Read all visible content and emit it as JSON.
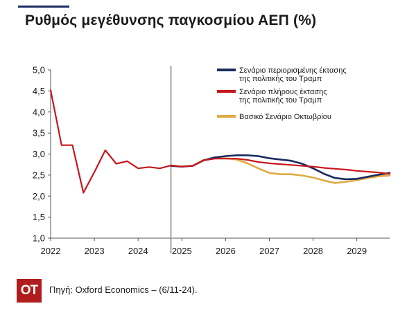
{
  "title": "Ρυθμός μεγέθυνσης παγκοσμίου ΑΕΠ (%)",
  "footer": {
    "logo_text": "ΟΤ",
    "source": "Πηγή: Oxford Economics – (6/11-24)."
  },
  "colors": {
    "navy": "#1b2a5e",
    "red": "#c8161d",
    "gold": "#e0aa44",
    "axis": "#555555",
    "divider": "#8a8a8a"
  },
  "chart_data": {
    "type": "line",
    "title": "Ρυθμός μεγέθυνσης παγκοσμίου ΑΕΠ (%)",
    "xlabel": "",
    "ylabel": "",
    "ylim": [
      1.0,
      5.0
    ],
    "xlim": [
      2022.0,
      2029.75
    ],
    "y_ticks": [
      "1,0",
      "1,5",
      "2,0",
      "2,5",
      "3,0",
      "3,5",
      "4,0",
      "4,5",
      "5,0"
    ],
    "x_ticks": [
      "2022",
      "2023",
      "2024",
      "2025",
      "2026",
      "2027",
      "2028",
      "2029"
    ],
    "grid": false,
    "legend_position": "top-right",
    "divider_x": 2024.75,
    "series": [
      {
        "name": "Σενάριο περιορισμένης έκτασης της πολιτικής του Τραμπ",
        "legend_lines": [
          "Σενάριο περιορισμένης έκτασης",
          "της πολιτικής του Τραμπ"
        ],
        "color": "#1b2a5e",
        "x": [
          2024.75,
          2025.0,
          2025.25,
          2025.5,
          2025.75,
          2026.0,
          2026.25,
          2026.5,
          2026.75,
          2027.0,
          2027.25,
          2027.5,
          2027.75,
          2028.0,
          2028.25,
          2028.5,
          2028.75,
          2029.0,
          2029.25,
          2029.5,
          2029.75
        ],
        "values": [
          2.72,
          2.7,
          2.72,
          2.85,
          2.92,
          2.95,
          2.97,
          2.97,
          2.95,
          2.9,
          2.87,
          2.84,
          2.77,
          2.66,
          2.53,
          2.43,
          2.4,
          2.41,
          2.46,
          2.51,
          2.55
        ]
      },
      {
        "name": "Σενάριο πλήρους έκτασης της πολιτικής του Τραμπ",
        "legend_lines": [
          "Σενάριο πλήρους έκτασης",
          "της πολιτικής του Τραμπ"
        ],
        "color": "#c8161d",
        "x": [
          2022.0,
          2022.25,
          2022.5,
          2022.75,
          2023.0,
          2023.25,
          2023.5,
          2023.75,
          2024.0,
          2024.25,
          2024.5,
          2024.75,
          2025.0,
          2025.25,
          2025.5,
          2025.75,
          2026.0,
          2026.25,
          2026.5,
          2026.75,
          2027.0,
          2027.25,
          2027.5,
          2027.75,
          2028.0,
          2028.25,
          2028.5,
          2028.75,
          2029.0,
          2029.25,
          2029.5,
          2029.75
        ],
        "values": [
          4.52,
          3.21,
          3.21,
          2.08,
          2.57,
          3.09,
          2.77,
          2.83,
          2.66,
          2.69,
          2.66,
          2.73,
          2.7,
          2.72,
          2.85,
          2.89,
          2.89,
          2.89,
          2.86,
          2.81,
          2.78,
          2.76,
          2.74,
          2.72,
          2.7,
          2.67,
          2.65,
          2.63,
          2.6,
          2.58,
          2.56,
          2.53
        ]
      },
      {
        "name": "Βασικό Σενάριο Οκτωβρίου",
        "legend_lines": [
          "Βασικό Σενάριο Οκτωβρίου"
        ],
        "color": "#e0aa44",
        "x": [
          2024.75,
          2025.0,
          2025.25,
          2025.5,
          2025.75,
          2026.0,
          2026.25,
          2026.5,
          2026.75,
          2027.0,
          2027.25,
          2027.5,
          2027.75,
          2028.0,
          2028.25,
          2028.5,
          2028.75,
          2029.0,
          2029.25,
          2029.5,
          2029.75
        ],
        "values": [
          2.72,
          2.7,
          2.72,
          2.86,
          2.9,
          2.9,
          2.87,
          2.78,
          2.66,
          2.55,
          2.52,
          2.52,
          2.49,
          2.44,
          2.37,
          2.31,
          2.34,
          2.38,
          2.43,
          2.47,
          2.49
        ]
      }
    ]
  }
}
